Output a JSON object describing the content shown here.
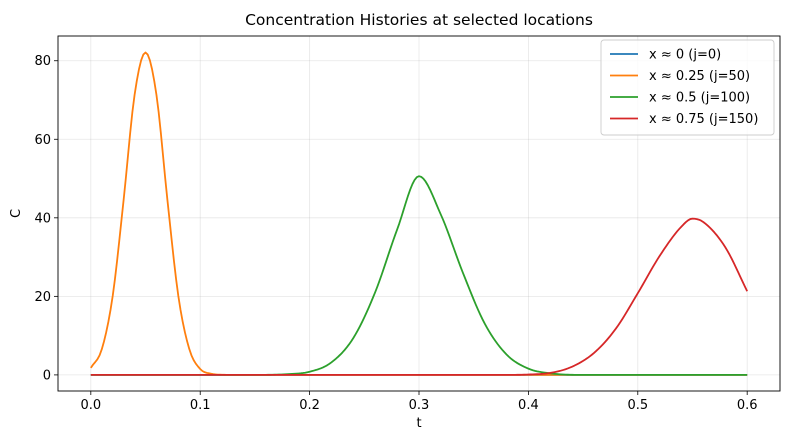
{
  "chart_data": {
    "type": "line",
    "title": "Concentration Histories at selected locations",
    "xlabel": "t",
    "ylabel": "C",
    "xlim": [
      -0.03,
      0.63
    ],
    "ylim": [
      -4.1,
      86.3
    ],
    "x_ticks": [
      0.0,
      0.1,
      0.2,
      0.3,
      0.4,
      0.5,
      0.6
    ],
    "x_tick_labels": [
      "0.0",
      "0.1",
      "0.2",
      "0.3",
      "0.4",
      "0.5",
      "0.6"
    ],
    "y_ticks": [
      0,
      20,
      40,
      60,
      80
    ],
    "y_tick_labels": [
      "0",
      "20",
      "40",
      "60",
      "80"
    ],
    "grid": true,
    "legend_position": "top-right",
    "series": [
      {
        "name": "x ≈ 0 (j=0)",
        "color": "#1f77b4",
        "x": [
          0.0,
          0.1,
          0.2,
          0.3,
          0.4,
          0.5,
          0.6
        ],
        "y": [
          0,
          0,
          0,
          0,
          0,
          0,
          0
        ]
      },
      {
        "name": "x ≈ 0.25 (j=50)",
        "color": "#ff7f0e",
        "x": [
          0.0,
          0.01,
          0.02,
          0.03,
          0.04,
          0.05,
          0.06,
          0.07,
          0.08,
          0.09,
          0.1,
          0.11,
          0.12,
          0.13,
          0.14,
          0.15,
          0.17,
          0.2,
          0.3,
          0.4,
          0.5,
          0.6
        ],
        "y": [
          1.8,
          6.5,
          20.1,
          44.6,
          71.3,
          82.1,
          71.3,
          44.6,
          20.1,
          6.6,
          1.5,
          0.3,
          0.04,
          0.0,
          0.0,
          0.0,
          0.0,
          0.0,
          0.0,
          0.0,
          0.0,
          0.0
        ]
      },
      {
        "name": "x ≈ 0.5 (j=100)",
        "color": "#2ca02c",
        "x": [
          0.0,
          0.15,
          0.18,
          0.2,
          0.22,
          0.24,
          0.26,
          0.28,
          0.3,
          0.32,
          0.34,
          0.36,
          0.38,
          0.4,
          0.42,
          0.45,
          0.5,
          0.6
        ],
        "y": [
          0.0,
          0.0,
          0.2,
          0.8,
          3.2,
          9.4,
          21.1,
          37.0,
          50.6,
          40.8,
          26.1,
          13.1,
          5.2,
          1.6,
          0.4,
          0.0,
          0.0,
          0.0
        ],
        "smooth": true
      },
      {
        "name": "x ≈ 0.75 (j=150)",
        "color": "#d62728",
        "x": [
          0.0,
          0.38,
          0.4,
          0.42,
          0.44,
          0.46,
          0.48,
          0.5,
          0.52,
          0.54,
          0.55,
          0.56,
          0.58,
          0.6
        ],
        "y": [
          0.0,
          0.0,
          0.1,
          0.5,
          2.1,
          5.6,
          11.8,
          20.8,
          30.3,
          37.8,
          39.8,
          38.9,
          32.5,
          21.3
        ],
        "smooth": true
      }
    ]
  }
}
